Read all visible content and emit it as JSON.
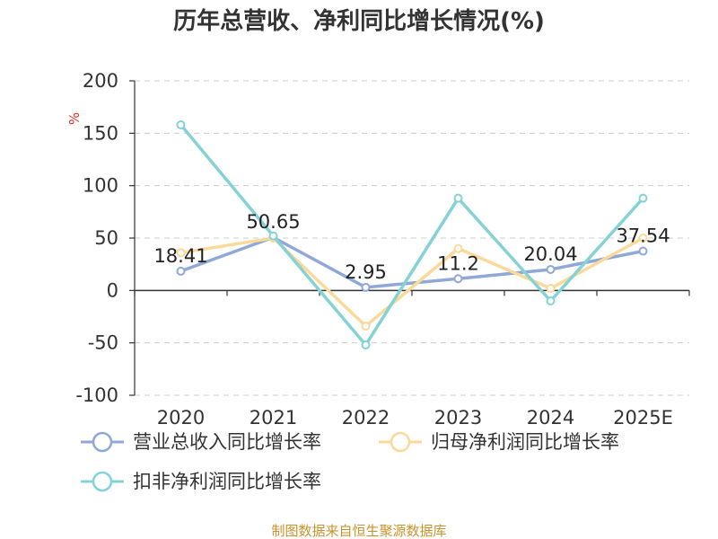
{
  "title": "历年总营收、净利同比增长情况(%)",
  "source": "制图数据来自恒生聚源数据库",
  "chart_data": {
    "type": "line",
    "title": "历年总营收、净利同比增长情况(%)",
    "ylabel": "%",
    "xlabel": "",
    "categories": [
      "2020",
      "2021",
      "2022",
      "2023",
      "2024",
      "2025E"
    ],
    "y_ticks": [
      "200",
      "150",
      "100",
      "50",
      "0",
      "-50",
      "-100"
    ],
    "ylim": [
      -100,
      200
    ],
    "grid": true,
    "legend_position": "bottom",
    "series": [
      {
        "name": "营业总收入同比增长率",
        "color": "#8fa8d8",
        "values": [
          18.41,
          50.65,
          2.95,
          11.2,
          20.04,
          37.54
        ],
        "labels": [
          "18.41",
          "50.65",
          "2.95",
          "11.2",
          "20.04",
          "37.54"
        ]
      },
      {
        "name": "归母净利润同比增长率",
        "color": "#fad99a",
        "values": [
          36,
          50,
          -34,
          40,
          2,
          50
        ]
      },
      {
        "name": "扣非净利润同比增长率",
        "color": "#85d2d4",
        "values": [
          158,
          52,
          -52,
          88,
          -10,
          88
        ]
      }
    ]
  }
}
